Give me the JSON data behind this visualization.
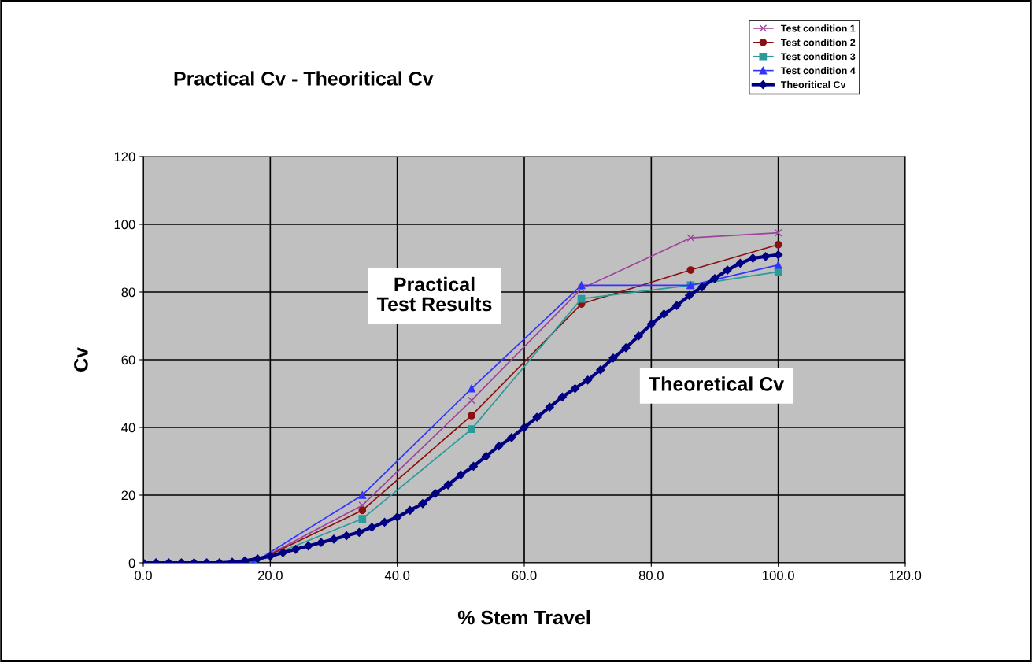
{
  "chart_data": {
    "type": "line",
    "title": "Practical Cv - Theoritical Cv",
    "xlabel": "% Stem Travel",
    "ylabel": "Cv",
    "xlim": [
      0,
      120
    ],
    "xticks": [
      {
        "value": 0,
        "label": "0.0"
      },
      {
        "value": 20,
        "label": "20.0"
      },
      {
        "value": 40,
        "label": "40.0"
      },
      {
        "value": 60,
        "label": "60.0"
      },
      {
        "value": 80,
        "label": "80.0"
      },
      {
        "value": 100,
        "label": "100.0"
      },
      {
        "value": 120,
        "label": "120.0"
      }
    ],
    "ylim": [
      0,
      120
    ],
    "yticks": [
      0,
      20,
      40,
      60,
      80,
      100,
      120
    ],
    "grid": true,
    "legend": "top right",
    "annotations": [
      "Practical\nTest Results",
      "Theoretical Cv"
    ],
    "series": [
      {
        "name": "Test condition 1",
        "color": "#a040a0",
        "marker": "cross",
        "x": [
          17.3,
          34.5,
          51.7,
          69,
          86.2,
          100
        ],
        "values": [
          0,
          17,
          48,
          81,
          96,
          97.5
        ]
      },
      {
        "name": "Test condition 2",
        "color": "#8b1010",
        "marker": "circle",
        "x": [
          17.3,
          34.5,
          51.7,
          69,
          86.2,
          100
        ],
        "values": [
          0,
          15.5,
          43.5,
          76.5,
          86.5,
          94
        ]
      },
      {
        "name": "Test condition 3",
        "color": "#2a9a9a",
        "marker": "square",
        "x": [
          17.3,
          34.5,
          51.7,
          69,
          86.2,
          100
        ],
        "values": [
          0,
          13,
          39.5,
          78,
          82,
          86
        ]
      },
      {
        "name": "Test condition 4",
        "color": "#3333ff",
        "marker": "triangle",
        "x": [
          17.3,
          34.5,
          51.7,
          69,
          86.2,
          100
        ],
        "values": [
          0,
          20,
          51.5,
          82,
          82,
          88
        ]
      },
      {
        "name": "Theoritical Cv",
        "color": "#000080",
        "marker": "diamond",
        "x": [
          0,
          2,
          4,
          6,
          8,
          10,
          12,
          14,
          16,
          18,
          20,
          22,
          24,
          26,
          28,
          30,
          32,
          34,
          36,
          38,
          40,
          42,
          44,
          46,
          48,
          50,
          52,
          54,
          56,
          58,
          60,
          62,
          64,
          66,
          68,
          70,
          72,
          74,
          76,
          78,
          80,
          82,
          84,
          86,
          88,
          90,
          92,
          94,
          96,
          98,
          100
        ],
        "values": [
          0,
          0,
          0,
          0,
          0,
          0,
          0,
          0.2,
          0.6,
          1.2,
          2,
          3,
          4,
          5,
          6,
          7,
          8,
          9,
          10.5,
          12,
          13.5,
          15.5,
          17.5,
          20.5,
          23,
          26,
          28.5,
          31.5,
          34.5,
          37,
          40,
          43,
          46,
          49,
          51.5,
          54,
          57,
          60.5,
          63.5,
          67,
          70.5,
          73.5,
          76,
          79,
          81.5,
          84,
          86.5,
          88.5,
          90,
          90.5,
          91
        ]
      }
    ]
  }
}
